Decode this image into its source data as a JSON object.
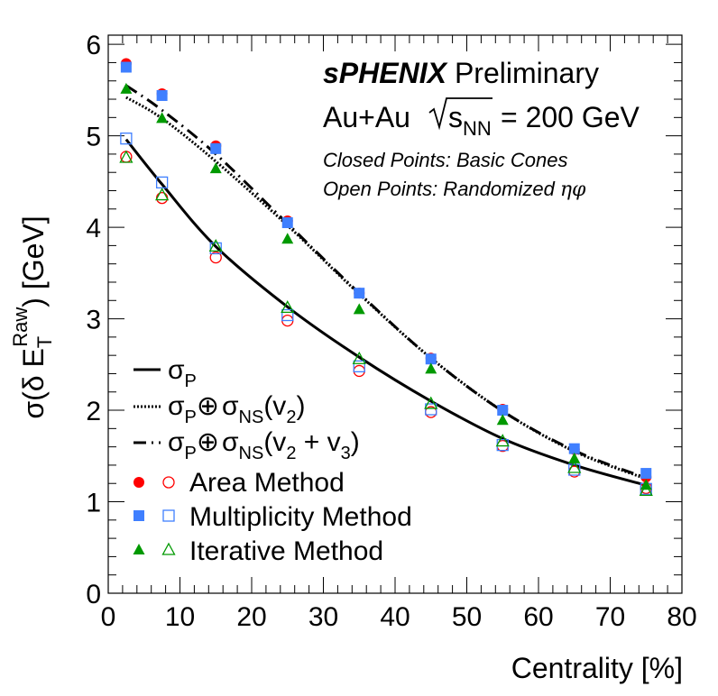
{
  "chart_data": {
    "type": "scatter",
    "xlabel": "Centrality [%]",
    "ylabel_parts": {
      "prefix": "σ(δ E",
      "sub": "T",
      "sup": "Raw",
      "suffix": ") [GeV]"
    },
    "xlim": [
      0,
      80
    ],
    "ylim": [
      0,
      6.1
    ],
    "x_ticks": [
      0,
      10,
      20,
      30,
      40,
      50,
      60,
      70,
      80
    ],
    "x_tick_labels": [
      "0",
      "10",
      "20",
      "30",
      "40",
      "50",
      "60",
      "70",
      "80"
    ],
    "y_ticks": [
      0,
      1,
      2,
      3,
      4,
      5,
      6
    ],
    "y_tick_labels": [
      "0",
      "1",
      "2",
      "3",
      "4",
      "5",
      "6"
    ],
    "grid": false,
    "annotations": {
      "experiment": "sPHENIX",
      "status": "Preliminary",
      "collision_prefix": "Au+Au",
      "sqrt_s": "s",
      "sqrt_s_sub": "NN",
      "energy": "= 200 GeV",
      "closed_note": "Closed Points: Basic Cones",
      "open_note_prefix": "Open Points: Randomized",
      "open_note_symbols": "ηφ"
    },
    "legend": {
      "position": "bottom-left",
      "curve_p": {
        "sym": "σ",
        "sub": "P"
      },
      "curve_v2": {
        "sym": "σ",
        "sub": "P",
        "op": "⊕",
        "sym2": "σ",
        "sub2": "NS",
        "tail_open": "(v",
        "tail_sub": "2",
        "tail_close": ")"
      },
      "curve_v23": {
        "sym": "σ",
        "sub": "P",
        "op": "⊕",
        "sym2": "σ",
        "sub2": "NS",
        "tail_open": "(v",
        "tail_sub": "2",
        "tail_mid": " + v",
        "tail_sub2": "3",
        "tail_close": ")"
      },
      "area": "Area Method",
      "multiplicity": "Multiplicity Method",
      "iterative": "Iterative Method"
    },
    "x": [
      2.5,
      7.5,
      15,
      25,
      35,
      45,
      55,
      65,
      75
    ],
    "series": [
      {
        "name": "Area Method",
        "kind": "closed",
        "marker": "circle",
        "color": "#ff0000",
        "values": [
          5.79,
          5.46,
          4.89,
          4.07,
          3.28,
          2.57,
          2.01,
          1.57,
          1.27
        ]
      },
      {
        "name": "Multiplicity Method",
        "kind": "closed",
        "marker": "square",
        "color": "#3f7fff",
        "values": [
          5.75,
          5.44,
          4.86,
          4.05,
          3.28,
          2.56,
          2.0,
          1.58,
          1.31
        ]
      },
      {
        "name": "Iterative Method",
        "kind": "closed",
        "marker": "triangle",
        "color": "#009900",
        "values": [
          5.51,
          5.19,
          4.64,
          3.87,
          3.1,
          2.45,
          1.89,
          1.47,
          1.18
        ]
      },
      {
        "name": "Area Method",
        "kind": "open",
        "marker": "circle",
        "color": "#ff0000",
        "values": [
          4.77,
          4.32,
          3.67,
          2.98,
          2.43,
          1.98,
          1.61,
          1.33,
          1.15
        ]
      },
      {
        "name": "Multiplicity Method",
        "kind": "open",
        "marker": "square",
        "color": "#3f7fff",
        "values": [
          4.97,
          4.49,
          3.77,
          3.04,
          2.48,
          2.01,
          1.62,
          1.35,
          1.14
        ]
      },
      {
        "name": "Iterative Method",
        "kind": "open",
        "marker": "triangle",
        "color": "#009900",
        "values": [
          4.76,
          4.35,
          3.79,
          3.12,
          2.56,
          2.07,
          1.66,
          1.37,
          1.12
        ]
      }
    ],
    "curves": [
      {
        "name": "σP",
        "style": "solid",
        "x": [
          2.5,
          7.5,
          15,
          25,
          35,
          45,
          55,
          65,
          75
        ],
        "y": [
          4.96,
          4.47,
          3.79,
          3.13,
          2.58,
          2.1,
          1.69,
          1.4,
          1.18
        ]
      },
      {
        "name": "σP⊕σNS(v2)",
        "style": "dotted",
        "x": [
          2.5,
          7.5,
          15,
          25,
          35,
          45,
          55,
          65,
          75
        ],
        "y": [
          5.42,
          5.19,
          4.72,
          4.02,
          3.27,
          2.57,
          1.99,
          1.55,
          1.25
        ]
      },
      {
        "name": "σP⊕σNS(v2 + v3)",
        "style": "dashdot",
        "x": [
          2.5,
          7.5,
          15,
          25,
          35,
          45,
          55,
          65,
          75
        ],
        "y": [
          5.55,
          5.28,
          4.8,
          4.04,
          3.28,
          2.57,
          1.99,
          1.56,
          1.26
        ]
      }
    ]
  }
}
